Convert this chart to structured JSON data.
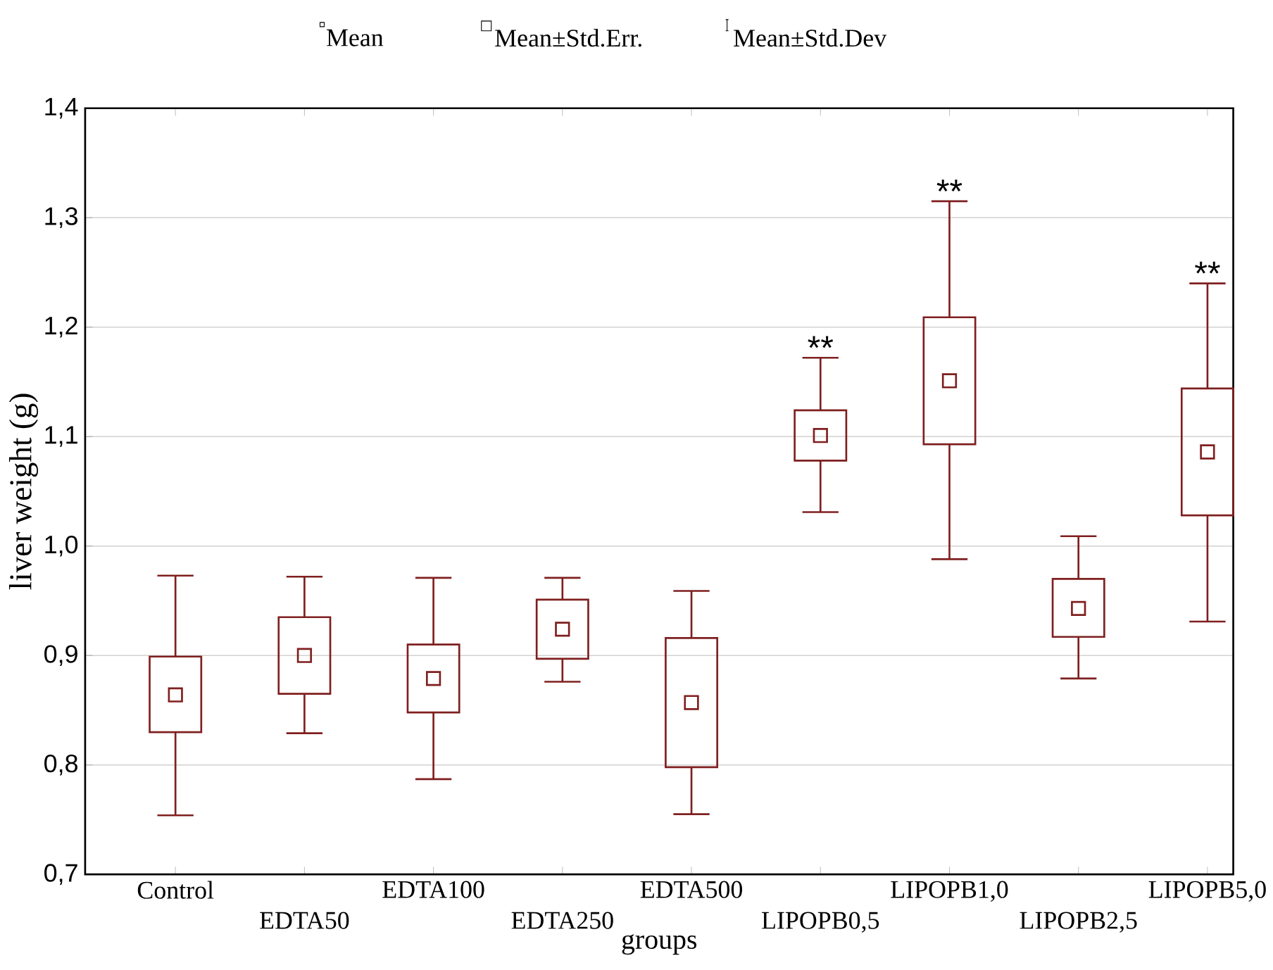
{
  "chart_data": {
    "type": "box",
    "xlabel": "groups",
    "ylabel": "liver weight (g)",
    "categories": [
      "Control",
      "EDTA50",
      "EDTA100",
      "EDTA250",
      "EDTA500",
      "LIPOPB0,5",
      "LIPOPB1,0",
      "LIPOPB2,5",
      "LIPOPB5,0"
    ],
    "color": "#7f1f1f",
    "boxes": [
      {
        "low": 0.754,
        "q1": 0.83,
        "median": 0.864,
        "q3": 0.899,
        "high": 0.973
      },
      {
        "low": 0.829,
        "q1": 0.865,
        "median": 0.9,
        "q3": 0.935,
        "high": 0.972
      },
      {
        "low": 0.787,
        "q1": 0.848,
        "median": 0.879,
        "q3": 0.91,
        "high": 0.971
      },
      {
        "low": 0.876,
        "q1": 0.897,
        "median": 0.924,
        "q3": 0.951,
        "high": 0.971
      },
      {
        "low": 0.755,
        "q1": 0.798,
        "median": 0.857,
        "q3": 0.916,
        "high": 0.959
      },
      {
        "low": 1.031,
        "q1": 1.078,
        "median": 1.101,
        "q3": 1.124,
        "high": 1.172
      },
      {
        "low": 0.988,
        "q1": 1.093,
        "median": 1.151,
        "q3": 1.209,
        "high": 1.315
      },
      {
        "low": 0.879,
        "q1": 0.917,
        "median": 0.943,
        "q3": 0.97,
        "high": 1.009
      },
      {
        "low": 0.931,
        "q1": 1.028,
        "median": 1.086,
        "q3": 1.144,
        "high": 1.24
      }
    ],
    "ylim": [
      0.7,
      1.4
    ],
    "yticks": [
      {
        "value": 0.7,
        "label": "0,7"
      },
      {
        "value": 0.8,
        "label": "0,8"
      },
      {
        "value": 0.9,
        "label": "0,9"
      },
      {
        "value": 1.0,
        "label": "1,0"
      },
      {
        "value": 1.1,
        "label": "1,1"
      },
      {
        "value": 1.2,
        "label": "1,2"
      },
      {
        "value": 1.3,
        "label": "1,3"
      },
      {
        "value": 1.4,
        "label": "1,4"
      }
    ],
    "grid": "y",
    "annotations": [
      "Mean",
      "Mean±Std.Err.",
      "Mean±Std.Dev",
      {
        "text": "**",
        "x": "LIPOPB0,5",
        "y": 1.172
      },
      {
        "text": "**",
        "x": "LIPOPB1,0",
        "y": 1.315
      },
      {
        "text": "**",
        "x": "LIPOPB5,0",
        "y": 1.24
      }
    ]
  }
}
